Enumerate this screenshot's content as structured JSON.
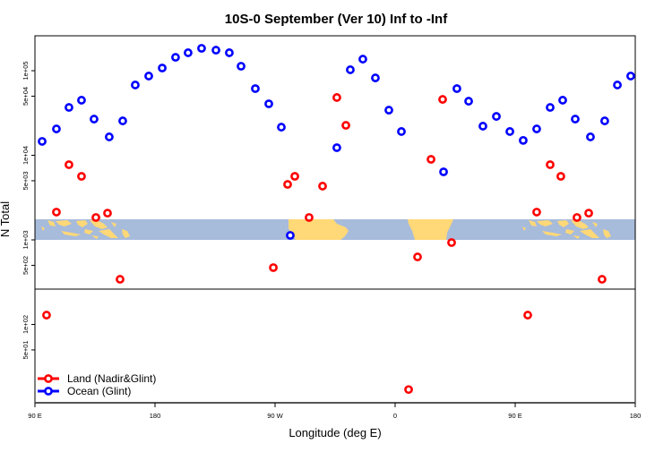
{
  "chart_data": {
    "type": "scatter",
    "title": "10S-0 September (Ver 10)   Inf to -Inf",
    "xlabel": "Longitude (deg E)",
    "ylabel": "N Total",
    "x_units": "degrees longitude, unwrapped (90 = 90E ... 540 = 180)",
    "xlim": [
      90,
      540
    ],
    "yscale": "log",
    "ylim": [
      11.5,
      260000
    ],
    "x_ticks": [
      {
        "value": 90,
        "label": "90 E"
      },
      {
        "value": 180,
        "label": "180"
      },
      {
        "value": 270,
        "label": "90 W"
      },
      {
        "value": 360,
        "label": "0"
      },
      {
        "value": 450,
        "label": "90 E"
      },
      {
        "value": 540,
        "label": "180"
      }
    ],
    "y_ticks": [
      {
        "value": 100000,
        "label": "1e+05"
      },
      {
        "value": 50000,
        "label": "5e+04"
      },
      {
        "value": 10000,
        "label": "1e+04"
      },
      {
        "value": 5000,
        "label": "5e+03"
      },
      {
        "value": 1000,
        "label": "1e+03"
      },
      {
        "value": 500,
        "label": "5e+02"
      },
      {
        "value": 100,
        "label": "1e+02"
      },
      {
        "value": 50,
        "label": "5e+01"
      }
    ],
    "legend_position": "bottom-left",
    "series": [
      {
        "name": "Land (Nadir&Glint)",
        "color": "#ff0000",
        "points": [
          [
            98.7,
            129
          ],
          [
            106.1,
            2130
          ],
          [
            115.5,
            7740
          ],
          [
            124.9,
            5640
          ],
          [
            135.7,
            1840
          ],
          [
            144.4,
            2070
          ],
          [
            153.8,
            342
          ],
          [
            268.7,
            470
          ],
          [
            279.4,
            4530
          ],
          [
            284.8,
            5640
          ],
          [
            295.5,
            1840
          ],
          [
            305.6,
            4320
          ],
          [
            316.3,
            48200
          ],
          [
            323.1,
            22600
          ],
          [
            370.1,
            17
          ],
          [
            376.8,
            629
          ],
          [
            386.9,
            8960
          ],
          [
            395.6,
            45800
          ],
          [
            402.3,
            929
          ],
          [
            459.4,
            129
          ],
          [
            466.1,
            2130
          ],
          [
            476.2,
            7740
          ],
          [
            484.2,
            5640
          ],
          [
            496.3,
            1840
          ],
          [
            505.1,
            2070
          ],
          [
            515.1,
            342
          ]
        ]
      },
      {
        "name": "Ocean (Glint)",
        "color": "#0000ff",
        "points": [
          [
            95.4,
            14600
          ],
          [
            106.1,
            20500
          ],
          [
            115.5,
            36800
          ],
          [
            124.9,
            44800
          ],
          [
            134.3,
            26800
          ],
          [
            145.7,
            16500
          ],
          [
            155.8,
            25500
          ],
          [
            165.2,
            67800
          ],
          [
            175.3,
            86500
          ],
          [
            185.4,
            107600
          ],
          [
            195.4,
            144000
          ],
          [
            204.8,
            163000
          ],
          [
            214.9,
            184000
          ],
          [
            225.7,
            175000
          ],
          [
            235.7,
            163000
          ],
          [
            244.5,
            113000
          ],
          [
            255.2,
            61400
          ],
          [
            265.3,
            40600
          ],
          [
            274.7,
            21500
          ],
          [
            281.4,
            1130
          ],
          [
            316.3,
            12300
          ],
          [
            326.4,
            102600
          ],
          [
            335.8,
            137000
          ],
          [
            345.2,
            82200
          ],
          [
            355.3,
            34200
          ],
          [
            364.7,
            19100
          ],
          [
            396.3,
            6370
          ],
          [
            406.3,
            61400
          ],
          [
            415.1,
            43600
          ],
          [
            425.8,
            22100
          ],
          [
            435.9,
            28800
          ],
          [
            446.0,
            19100
          ],
          [
            456.0,
            15000
          ],
          [
            466.1,
            20500
          ],
          [
            476.2,
            36800
          ],
          [
            485.6,
            44800
          ],
          [
            495.0,
            26800
          ],
          [
            506.4,
            16500
          ],
          [
            517.1,
            25500
          ],
          [
            526.6,
            67800
          ],
          [
            536.6,
            86500
          ]
        ]
      }
    ],
    "colors": {
      "ocean": "#a7bbdb",
      "land": "#ffd877"
    }
  }
}
